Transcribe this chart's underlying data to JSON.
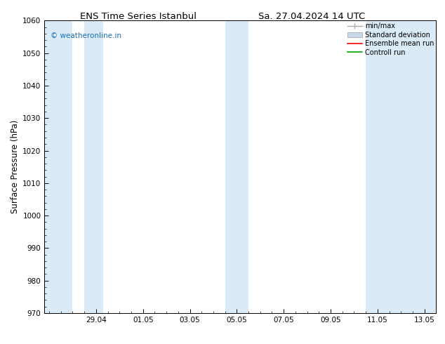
{
  "title_left": "ENS Time Series Istanbul",
  "title_right": "Sa. 27.04.2024 14 UTC",
  "ylabel": "Surface Pressure (hPa)",
  "ylim": [
    970,
    1060
  ],
  "yticks": [
    970,
    980,
    990,
    1000,
    1010,
    1020,
    1030,
    1040,
    1050,
    1060
  ],
  "xtick_labels": [
    "29.04",
    "01.05",
    "03.05",
    "05.05",
    "07.05",
    "09.05",
    "11.05",
    "13.05"
  ],
  "xtick_positions": [
    2,
    4,
    6,
    8,
    10,
    12,
    14,
    16
  ],
  "x_min": -0.2,
  "x_max": 16.5,
  "background_color": "#ffffff",
  "plot_bg_color": "#ffffff",
  "shaded_band_color": "#daeaf7",
  "watermark_text": "© weatheronline.in",
  "watermark_color": "#1a6eb5",
  "legend_labels": [
    "min/max",
    "Standard deviation",
    "Ensemble mean run",
    "Controll run"
  ],
  "legend_colors": [
    "#aaaaaa",
    "#c8d8ea",
    "#ff0000",
    "#00aa00"
  ],
  "shaded_regions": [
    {
      "xmin": -0.2,
      "xmax": 1.0
    },
    {
      "xmin": 1.5,
      "xmax": 2.3
    },
    {
      "xmin": 7.5,
      "xmax": 8.5
    },
    {
      "xmin": 13.5,
      "xmax": 16.5
    }
  ],
  "title_fontsize": 9.5,
  "tick_labelsize": 7.5,
  "ylabel_fontsize": 8.5,
  "watermark_fontsize": 7.5,
  "legend_fontsize": 7.0
}
